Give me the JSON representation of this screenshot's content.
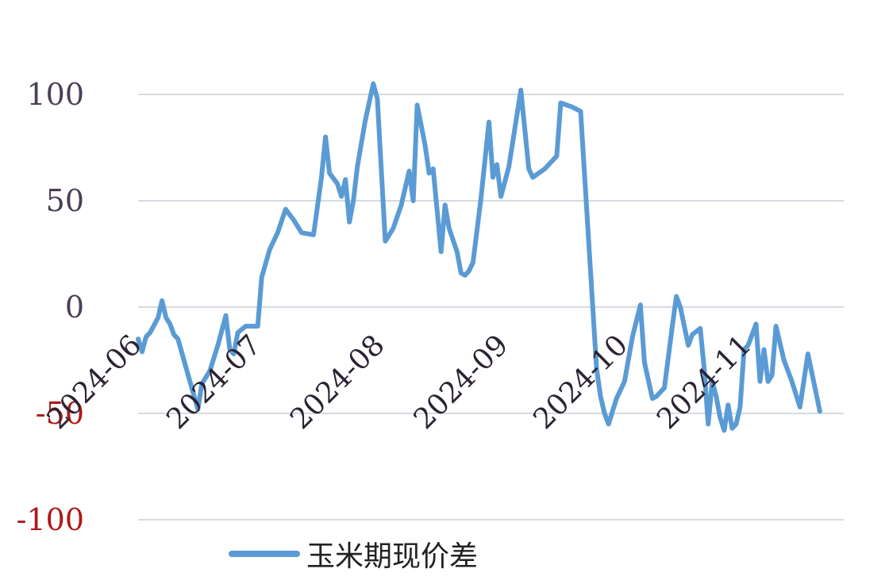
{
  "chart_data": {
    "type": "line",
    "title": "",
    "xlabel": "",
    "ylabel": "",
    "ylim": [
      -100,
      100
    ],
    "yticks": [
      {
        "value": 100,
        "label": "100"
      },
      {
        "value": 50,
        "label": "50"
      },
      {
        "value": 0,
        "label": "0"
      },
      {
        "value": -50,
        "label": "-50"
      },
      {
        "value": -100,
        "label": "-100"
      }
    ],
    "xticks": [
      {
        "value": "2024-06-01",
        "label": "2024-06"
      },
      {
        "value": "2024-07-01",
        "label": "2024-07"
      },
      {
        "value": "2024-08-01",
        "label": "2024-08"
      },
      {
        "value": "2024-09-01",
        "label": "2024-09"
      },
      {
        "value": "2024-10-01",
        "label": "2024-10"
      },
      {
        "value": "2024-11-01",
        "label": "2024-11"
      }
    ],
    "xlim": [
      "2024-06-01",
      "2024-11-25"
    ],
    "grid": true,
    "legend": "bottom-left",
    "colors": {
      "line": "#5b9bd5",
      "grid": "#c8cdd6",
      "tick_positive": "#4a3f55",
      "tick_negative": "#b01818"
    },
    "series": [
      {
        "name": "玉米期现价差",
        "points": [
          [
            "2024-06-01",
            -15
          ],
          [
            "2024-06-02",
            -21
          ],
          [
            "2024-06-03",
            -14
          ],
          [
            "2024-06-04",
            -12
          ],
          [
            "2024-06-06",
            -5
          ],
          [
            "2024-06-07",
            3
          ],
          [
            "2024-06-08",
            -5
          ],
          [
            "2024-06-09",
            -8
          ],
          [
            "2024-06-10",
            -13
          ],
          [
            "2024-06-11",
            -15
          ],
          [
            "2024-06-14",
            -35
          ],
          [
            "2024-06-16",
            -48
          ],
          [
            "2024-06-17",
            -36
          ],
          [
            "2024-06-19",
            -30
          ],
          [
            "2024-06-21",
            -18
          ],
          [
            "2024-06-23",
            -4
          ],
          [
            "2024-06-24",
            -20
          ],
          [
            "2024-06-25",
            -22
          ],
          [
            "2024-06-26",
            -12
          ],
          [
            "2024-06-28",
            -9
          ],
          [
            "2024-07-01",
            -9
          ],
          [
            "2024-07-02",
            14
          ],
          [
            "2024-07-04",
            27
          ],
          [
            "2024-07-06",
            35
          ],
          [
            "2024-07-08",
            46
          ],
          [
            "2024-07-10",
            41
          ],
          [
            "2024-07-12",
            35
          ],
          [
            "2024-07-15",
            34
          ],
          [
            "2024-07-17",
            61
          ],
          [
            "2024-07-18",
            80
          ],
          [
            "2024-07-19",
            63
          ],
          [
            "2024-07-21",
            58
          ],
          [
            "2024-07-22",
            52
          ],
          [
            "2024-07-23",
            60
          ],
          [
            "2024-07-24",
            40
          ],
          [
            "2024-07-25",
            50
          ],
          [
            "2024-07-26",
            66
          ],
          [
            "2024-07-28",
            88
          ],
          [
            "2024-07-30",
            105
          ],
          [
            "2024-07-31",
            98
          ],
          [
            "2024-08-02",
            31
          ],
          [
            "2024-08-04",
            37
          ],
          [
            "2024-08-06",
            48
          ],
          [
            "2024-08-08",
            64
          ],
          [
            "2024-08-09",
            50
          ],
          [
            "2024-08-10",
            95
          ],
          [
            "2024-08-12",
            76
          ],
          [
            "2024-08-13",
            63
          ],
          [
            "2024-08-14",
            65
          ],
          [
            "2024-08-16",
            26
          ],
          [
            "2024-08-17",
            48
          ],
          [
            "2024-08-18",
            37
          ],
          [
            "2024-08-20",
            26
          ],
          [
            "2024-08-21",
            16
          ],
          [
            "2024-08-22",
            15
          ],
          [
            "2024-08-23",
            17
          ],
          [
            "2024-08-24",
            21
          ],
          [
            "2024-08-26",
            51
          ],
          [
            "2024-08-28",
            87
          ],
          [
            "2024-08-29",
            61
          ],
          [
            "2024-08-30",
            67
          ],
          [
            "2024-08-31",
            52
          ],
          [
            "2024-09-02",
            66
          ],
          [
            "2024-09-05",
            102
          ],
          [
            "2024-09-07",
            65
          ],
          [
            "2024-09-08",
            61
          ],
          [
            "2024-09-11",
            65
          ],
          [
            "2024-09-14",
            71
          ],
          [
            "2024-09-15",
            96
          ],
          [
            "2024-09-18",
            94
          ],
          [
            "2024-09-20",
            92
          ],
          [
            "2024-09-24",
            -29
          ],
          [
            "2024-09-25",
            -42
          ],
          [
            "2024-09-26",
            -50
          ],
          [
            "2024-09-27",
            -55
          ],
          [
            "2024-09-29",
            -43
          ],
          [
            "2024-10-01",
            -35
          ],
          [
            "2024-10-03",
            -14
          ],
          [
            "2024-10-05",
            1
          ],
          [
            "2024-10-06",
            -26
          ],
          [
            "2024-10-08",
            -43
          ],
          [
            "2024-10-09",
            -42
          ],
          [
            "2024-10-11",
            -38
          ],
          [
            "2024-10-13",
            -9
          ],
          [
            "2024-10-14",
            5
          ],
          [
            "2024-10-15",
            0
          ],
          [
            "2024-10-17",
            -18
          ],
          [
            "2024-10-18",
            -13
          ],
          [
            "2024-10-20",
            -10
          ],
          [
            "2024-10-21",
            -29
          ],
          [
            "2024-10-22",
            -55
          ],
          [
            "2024-10-23",
            -35
          ],
          [
            "2024-10-24",
            -42
          ],
          [
            "2024-10-25",
            -52
          ],
          [
            "2024-10-26",
            -58
          ],
          [
            "2024-10-27",
            -46
          ],
          [
            "2024-10-28",
            -57
          ],
          [
            "2024-10-29",
            -55
          ],
          [
            "2024-10-30",
            -47
          ],
          [
            "2024-10-31",
            -20
          ],
          [
            "2024-11-01",
            -18
          ],
          [
            "2024-11-03",
            -8
          ],
          [
            "2024-11-04",
            -35
          ],
          [
            "2024-11-05",
            -20
          ],
          [
            "2024-11-06",
            -35
          ],
          [
            "2024-11-07",
            -32
          ],
          [
            "2024-11-08",
            -9
          ],
          [
            "2024-11-10",
            -25
          ],
          [
            "2024-11-12",
            -35
          ],
          [
            "2024-11-14",
            -47
          ],
          [
            "2024-11-16",
            -22
          ],
          [
            "2024-11-19",
            -49
          ]
        ]
      }
    ]
  }
}
